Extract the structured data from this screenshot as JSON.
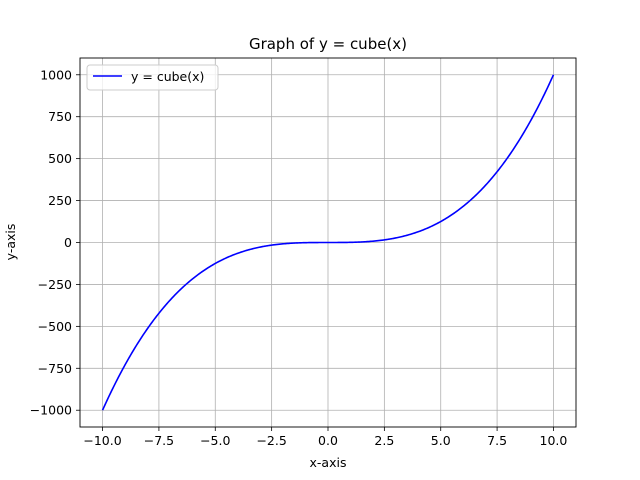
{
  "chart_data": {
    "type": "line",
    "title": "Graph of y = cube(x)",
    "xlabel": "x-axis",
    "ylabel": "y-axis",
    "xlim": [
      -11,
      11
    ],
    "ylim": [
      -1100,
      1100
    ],
    "xticks": [
      -10.0,
      -7.5,
      -5.0,
      -2.5,
      0.0,
      2.5,
      5.0,
      7.5,
      10.0
    ],
    "xtick_labels": [
      "−10.0",
      "−7.5",
      "−5.0",
      "−2.5",
      "0.0",
      "2.5",
      "5.0",
      "7.5",
      "10.0"
    ],
    "yticks": [
      -1000,
      -750,
      -500,
      -250,
      0,
      250,
      500,
      750,
      1000
    ],
    "ytick_labels": [
      "−1000",
      "−750",
      "−500",
      "−250",
      "0",
      "250",
      "500",
      "750",
      "1000"
    ],
    "grid": true,
    "legend_position": "top-left",
    "series": [
      {
        "name": "y = cube(x)",
        "color": "#0000ff",
        "function": "x^3",
        "x_range": [
          -10,
          10
        ],
        "x": [
          -10,
          -9,
          -8,
          -7,
          -6,
          -5,
          -4,
          -3,
          -2,
          -1,
          0,
          1,
          2,
          3,
          4,
          5,
          6,
          7,
          8,
          9,
          10
        ],
        "y": [
          -1000,
          -729,
          -512,
          -343,
          -216,
          -125,
          -64,
          -27,
          -8,
          -1,
          0,
          1,
          8,
          27,
          64,
          125,
          216,
          343,
          512,
          729,
          1000
        ]
      }
    ]
  }
}
